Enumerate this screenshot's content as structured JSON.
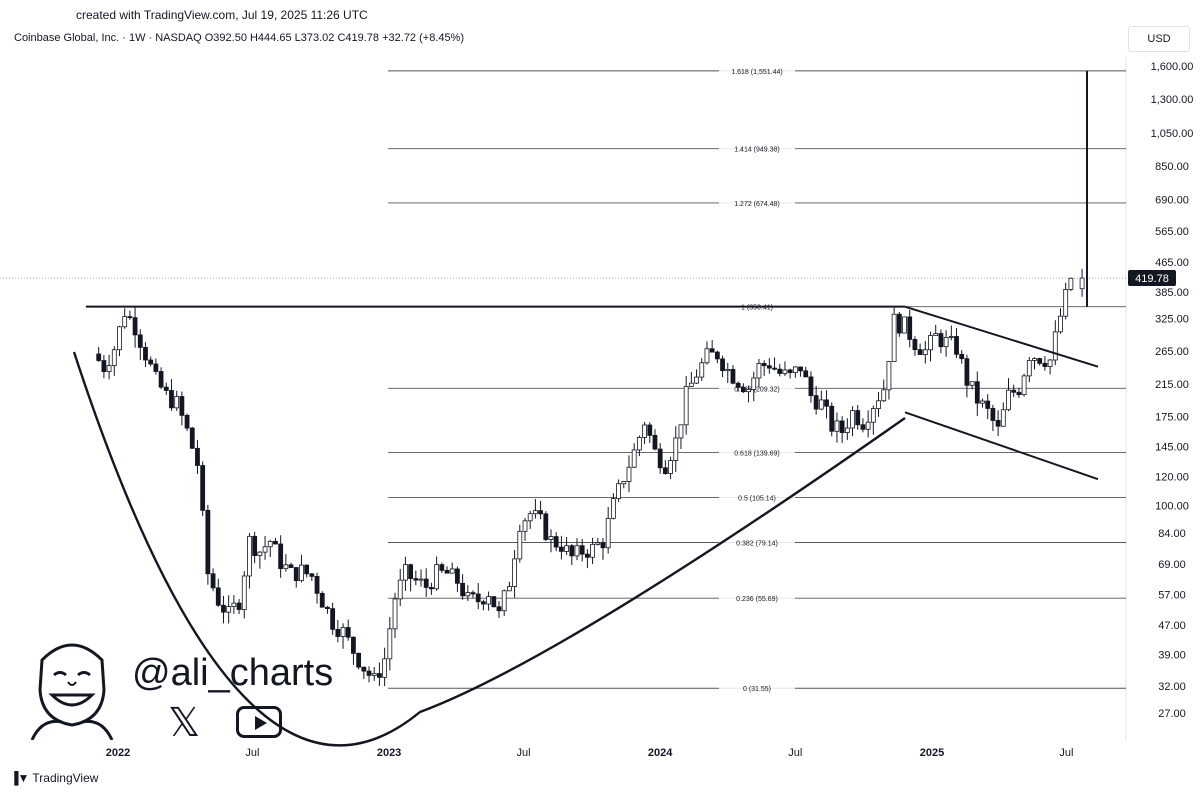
{
  "header": {
    "created": "created with TradingView.com, Jul 19, 2025 11:26 UTC",
    "legend": "Coinbase Global, Inc. · 1W · NASDAQ  O392.50  H444.65  L373.02  C419.78  +32.72 (+8.45%)",
    "currency": "USD"
  },
  "footer": {
    "brand": "TradingView"
  },
  "watermark": {
    "handle": "@ali_charts",
    "x_icon": "x-logo-icon",
    "youtube_icon": "youtube-icon"
  },
  "chart_data": {
    "type": "candlestick",
    "symbol": "Coinbase Global, Inc.",
    "interval": "1W",
    "exchange": "NASDAQ",
    "ohlc": {
      "open": 392.5,
      "high": 444.65,
      "low": 373.02,
      "close": 419.78,
      "change": 32.72,
      "change_pct": 8.45
    },
    "last_price": 419.78,
    "last_price_label": "419.78",
    "y_scale": "log",
    "ylim": [
      24,
      1800
    ],
    "y_ticks": [
      "1,600.00",
      "1,300.00",
      "1,050.00",
      "850.00",
      "690.00",
      "565.00",
      "465.00",
      "385.00",
      "325.00",
      "265.00",
      "215.00",
      "175.00",
      "145.00",
      "120.00",
      "100.00",
      "84.00",
      "69.00",
      "57.00",
      "47.00",
      "39.00",
      "32.00",
      "27.00"
    ],
    "x_ticks": [
      "2022",
      "Jul",
      "2023",
      "Jul",
      "2024",
      "Jul",
      "2025",
      "Jul"
    ],
    "fib_levels": [
      {
        "label": "1.618 (1,551.44)",
        "value": 1551.44
      },
      {
        "label": "1.414 (949.38)",
        "value": 949.38
      },
      {
        "label": "1.272 (674.48)",
        "value": 674.48
      },
      {
        "label": "1 (350.41)",
        "value": 350.41
      },
      {
        "label": "0.786 (209.32)",
        "value": 209.32
      },
      {
        "label": "0.618 (139.69)",
        "value": 139.69
      },
      {
        "label": "0.5 (105.14)",
        "value": 105.14
      },
      {
        "label": "0.382 (79.14)",
        "value": 79.14
      },
      {
        "label": "0.236 (55.69)",
        "value": 55.69
      },
      {
        "label": "0 (31.55)",
        "value": 31.55
      }
    ],
    "price_path": [
      [
        "2021-12-06",
        260
      ],
      [
        "2021-12-20",
        240
      ],
      [
        "2022-01-03",
        270
      ],
      [
        "2022-01-17",
        340
      ],
      [
        "2022-01-31",
        310
      ],
      [
        "2022-02-14",
        260
      ],
      [
        "2022-02-28",
        220
      ],
      [
        "2022-03-14",
        200
      ],
      [
        "2022-03-28",
        190
      ],
      [
        "2022-04-11",
        160
      ],
      [
        "2022-04-25",
        130
      ],
      [
        "2022-05-09",
        65
      ],
      [
        "2022-05-23",
        55
      ],
      [
        "2022-06-06",
        50
      ],
      [
        "2022-06-20",
        55
      ],
      [
        "2022-07-04",
        80
      ],
      [
        "2022-07-18",
        75
      ],
      [
        "2022-08-01",
        80
      ],
      [
        "2022-08-15",
        70
      ],
      [
        "2022-08-29",
        65
      ],
      [
        "2022-09-12",
        66
      ],
      [
        "2022-09-26",
        64
      ],
      [
        "2022-10-10",
        55
      ],
      [
        "2022-10-24",
        48
      ],
      [
        "2022-11-07",
        45
      ],
      [
        "2022-11-21",
        40
      ],
      [
        "2022-12-05",
        36
      ],
      [
        "2022-12-19",
        33
      ],
      [
        "2023-01-02",
        38
      ],
      [
        "2023-01-16",
        56
      ],
      [
        "2023-01-30",
        65
      ],
      [
        "2023-02-13",
        62
      ],
      [
        "2023-02-27",
        60
      ],
      [
        "2023-03-13",
        65
      ],
      [
        "2023-03-27",
        65
      ],
      [
        "2023-04-10",
        62
      ],
      [
        "2023-04-24",
        55
      ],
      [
        "2023-05-08",
        55
      ],
      [
        "2023-05-22",
        58
      ],
      [
        "2023-06-05",
        50
      ],
      [
        "2023-06-19",
        62
      ],
      [
        "2023-07-03",
        90
      ],
      [
        "2023-07-17",
        95
      ],
      [
        "2023-07-31",
        90
      ],
      [
        "2023-08-14",
        80
      ],
      [
        "2023-08-28",
        78
      ],
      [
        "2023-09-11",
        72
      ],
      [
        "2023-09-25",
        75
      ],
      [
        "2023-10-09",
        76
      ],
      [
        "2023-10-23",
        80
      ],
      [
        "2023-11-06",
        100
      ],
      [
        "2023-11-20",
        120
      ],
      [
        "2023-12-04",
        140
      ],
      [
        "2023-12-18",
        170
      ],
      [
        "2024-01-01",
        140
      ],
      [
        "2024-01-15",
        130
      ],
      [
        "2024-01-29",
        150
      ],
      [
        "2024-02-12",
        200
      ],
      [
        "2024-02-26",
        230
      ],
      [
        "2024-03-11",
        255
      ],
      [
        "2024-03-25",
        260
      ],
      [
        "2024-04-08",
        235
      ],
      [
        "2024-04-22",
        220
      ],
      [
        "2024-05-06",
        210
      ],
      [
        "2024-05-20",
        240
      ],
      [
        "2024-06-03",
        245
      ],
      [
        "2024-06-17",
        230
      ],
      [
        "2024-07-01",
        225
      ],
      [
        "2024-07-15",
        240
      ],
      [
        "2024-07-29",
        200
      ],
      [
        "2024-08-12",
        190
      ],
      [
        "2024-08-26",
        165
      ],
      [
        "2024-09-09",
        160
      ],
      [
        "2024-09-23",
        180
      ],
      [
        "2024-10-07",
        170
      ],
      [
        "2024-10-21",
        190
      ],
      [
        "2024-11-04",
        210
      ],
      [
        "2024-11-18",
        320
      ],
      [
        "2024-12-02",
        310
      ],
      [
        "2024-12-16",
        280
      ],
      [
        "2024-12-30",
        265
      ],
      [
        "2025-01-13",
        290
      ],
      [
        "2025-01-27",
        280
      ],
      [
        "2025-02-10",
        270
      ],
      [
        "2025-02-24",
        220
      ],
      [
        "2025-03-10",
        195
      ],
      [
        "2025-03-24",
        180
      ],
      [
        "2025-04-07",
        160
      ],
      [
        "2025-04-21",
        200
      ],
      [
        "2025-05-05",
        210
      ],
      [
        "2025-05-19",
        260
      ],
      [
        "2025-06-02",
        255
      ],
      [
        "2025-06-16",
        250
      ],
      [
        "2025-06-30",
        330
      ],
      [
        "2025-07-14",
        420
      ]
    ]
  }
}
